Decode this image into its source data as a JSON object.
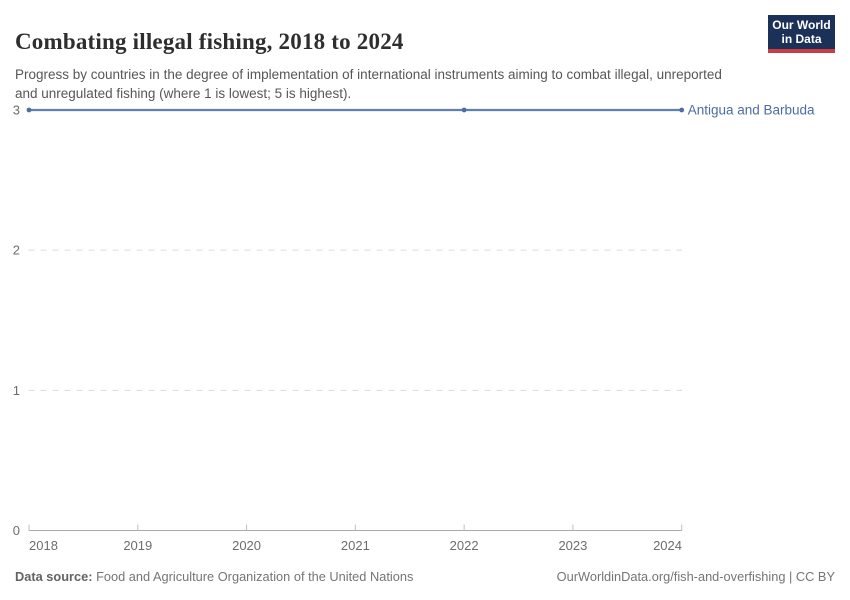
{
  "header": {
    "title": "Combating illegal fishing, 2018 to 2024",
    "subtitle": "Progress by countries in the degree of implementation of international instruments aiming to combat illegal, unreported and unregulated fishing (where 1 is lowest; 5 is highest).",
    "logo": {
      "line1": "Our World",
      "line2": "in Data",
      "bg_color": "#1b3157",
      "accent_color": "#cc3c43"
    }
  },
  "chart_data": {
    "type": "line",
    "title": "Combating illegal fishing, 2018 to 2024",
    "xlabel": "",
    "ylabel": "",
    "x_ticks": [
      2018,
      2019,
      2020,
      2021,
      2022,
      2023,
      2024
    ],
    "x_range": [
      2018,
      2024
    ],
    "y_ticks": [
      0,
      1,
      2,
      3
    ],
    "y_range": [
      0,
      3
    ],
    "grid": "dashed horizontal gridlines at 1, 2, 3; solid axis at 0",
    "legend_position": "end-of-line label",
    "series": [
      {
        "name": "Antigua and Barbuda",
        "line_color": "#5f81b0",
        "marker_color": "#4c6ea6",
        "label_color": "#4a6da3",
        "x": [
          2018,
          2022,
          2024
        ],
        "values": [
          3,
          3,
          3
        ]
      }
    ],
    "colors": {
      "gridline": "#dcdcdc",
      "axis": "#a9a9a9",
      "tick": "#bfbfbf",
      "tick_label": "#6d6d6d"
    }
  },
  "footer": {
    "datasource_label": "Data source:",
    "datasource_value": " Food and Agriculture Organization of the United Nations",
    "link": "OurWorldinData.org/fish-and-overfishing | CC BY"
  }
}
